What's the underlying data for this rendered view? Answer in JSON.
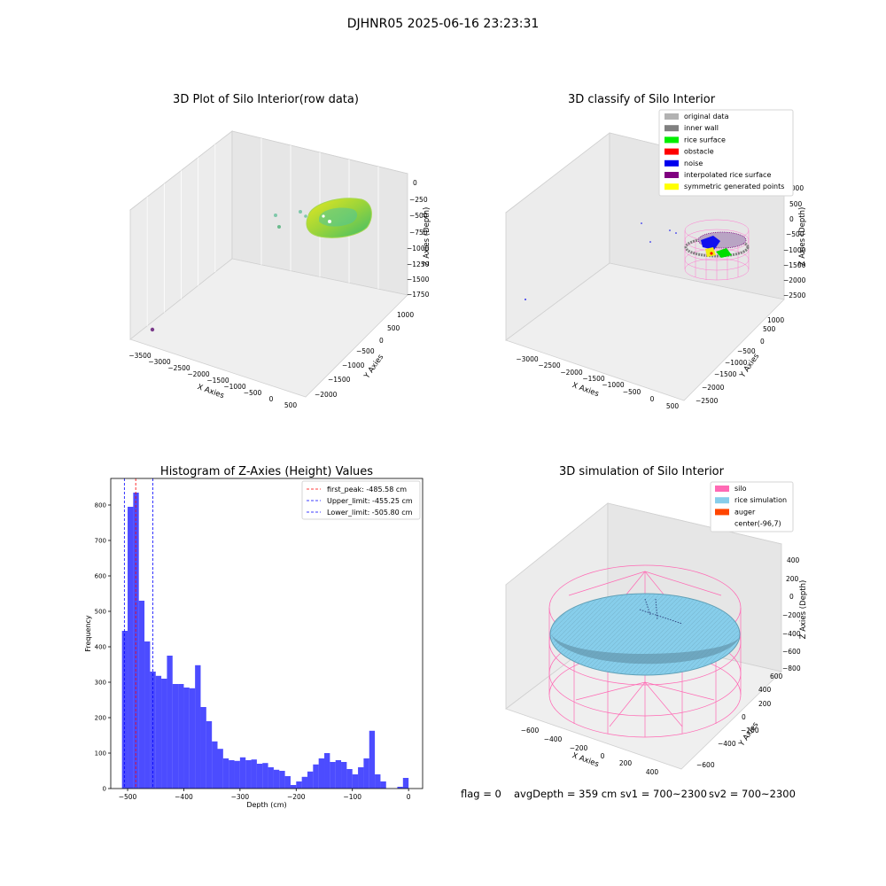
{
  "figure": {
    "suptitle": "DJHNR05 2025-06-16 23:23:31",
    "footer": {
      "flag": "flag = 0",
      "avg_depth": "avgDepth = 359 cm",
      "sv1": "sv1 = 700~2300",
      "sv2": "sv2 = 700~2300"
    }
  },
  "chart_data": [
    {
      "id": "raw",
      "type": "scatter",
      "title": "3D Plot of Silo Interior(row data)",
      "xlabel": "X Axies",
      "ylabel": "Y Axies",
      "zlabel": "Z Axies (Depth)",
      "x_ticks": [
        "−3500",
        "−3000",
        "−2500",
        "−2000",
        "−1500",
        "−1000",
        "−500",
        "0",
        "500"
      ],
      "y_ticks": [
        "−2000",
        "−1500",
        "−1000",
        "−500",
        "0",
        "500",
        "1000"
      ],
      "z_ticks": [
        "0",
        "−250",
        "−500",
        "−750",
        "−1000",
        "−1250",
        "−1500",
        "−1750"
      ],
      "grid": true
    },
    {
      "id": "classify",
      "type": "scatter",
      "title": "3D classify of Silo Interior",
      "xlabel": "X Axies",
      "ylabel": "Y Axies",
      "zlabel": "Z Axies (Depth)",
      "x_ticks": [
        "−3000",
        "−2500",
        "−2000",
        "−1500",
        "−1000",
        "−500",
        "0",
        "500"
      ],
      "y_ticks": [
        "−2500",
        "−2000",
        "−1500",
        "−1000",
        "−500",
        "0",
        "500",
        "1000"
      ],
      "z_ticks": [
        "1000",
        "500",
        "0",
        "−500",
        "−1000",
        "−1500",
        "−2000",
        "−2500"
      ],
      "legend": {
        "position": "top-right",
        "items": [
          {
            "label": "original data",
            "color": "#b2b2b2"
          },
          {
            "label": "inner wall",
            "color": "#808080"
          },
          {
            "label": "rice surface",
            "color": "#00ee00"
          },
          {
            "label": "obstacle",
            "color": "#ff0000"
          },
          {
            "label": "noise",
            "color": "#0000ee"
          },
          {
            "label": "interpolated rice surface",
            "color": "#800080"
          },
          {
            "label": "symmetric generated points",
            "color": "#ffff00"
          }
        ]
      },
      "grid": true
    },
    {
      "id": "histogram",
      "type": "bar",
      "title": "Histogram of Z-Axies (Height) Values",
      "xlabel": "Depth (cm)",
      "ylabel": "Frequency",
      "xlim": [
        -530,
        25
      ],
      "ylim": [
        0,
        875
      ],
      "x_ticks": [
        -500,
        -400,
        -300,
        -200,
        -100,
        0
      ],
      "x_tick_labels": [
        "−500",
        "−400",
        "−300",
        "−200",
        "−100",
        "0"
      ],
      "y_ticks": [
        0,
        100,
        200,
        300,
        400,
        500,
        600,
        700,
        800
      ],
      "bar_color": "#0000ff",
      "bin_width": 10,
      "bin_starts": [
        -510,
        -500,
        -490,
        -480,
        -470,
        -460,
        -450,
        -440,
        -430,
        -420,
        -410,
        -400,
        -390,
        -380,
        -370,
        -360,
        -350,
        -340,
        -330,
        -320,
        -310,
        -300,
        -290,
        -280,
        -270,
        -260,
        -250,
        -240,
        -230,
        -220,
        -210,
        -200,
        -190,
        -180,
        -170,
        -160,
        -150,
        -140,
        -130,
        -120,
        -110,
        -100,
        -90,
        -80,
        -70,
        -60,
        -50,
        -40,
        -30,
        -20,
        -10,
        0
      ],
      "values": [
        445,
        795,
        835,
        530,
        415,
        330,
        318,
        310,
        375,
        295,
        295,
        285,
        283,
        348,
        230,
        190,
        133,
        112,
        85,
        80,
        78,
        88,
        80,
        82,
        70,
        72,
        60,
        53,
        50,
        35,
        10,
        20,
        33,
        48,
        68,
        85,
        100,
        75,
        80,
        75,
        55,
        40,
        60,
        85,
        163,
        40,
        20,
        0,
        0,
        5,
        30,
        0
      ],
      "vlines": [
        {
          "label": "first_peak: -485.58 cm",
          "x": -485.58,
          "color": "#ff0000"
        },
        {
          "label": "Upper_limit: -455.25 cm",
          "x": -455.25,
          "color": "#0000ff"
        },
        {
          "label": "Lower_limit: -505.80 cm",
          "x": -505.8,
          "color": "#0000ff"
        }
      ],
      "legend_position": "top-right"
    },
    {
      "id": "simulation",
      "type": "scatter",
      "title": "3D simulation of Silo Interior",
      "xlabel": "X Axies",
      "ylabel": "Y Axies",
      "zlabel": "Z Axies (Depth)",
      "x_ticks": [
        "−600",
        "−400",
        "−200",
        "0",
        "200",
        "400"
      ],
      "y_ticks": [
        "−600",
        "−400",
        "−200",
        "0",
        "200",
        "400",
        "600"
      ],
      "z_ticks": [
        "400",
        "200",
        "0",
        "−200",
        "−400",
        "−600",
        "−800"
      ],
      "legend": {
        "position": "top-right",
        "items": [
          {
            "label": "silo",
            "color": "#ff69b4"
          },
          {
            "label": "rice simulation",
            "color": "#87ceeb"
          },
          {
            "label": "auger",
            "color": "#ff4500"
          },
          {
            "label": "center(-96,7)",
            "color": "#ffffff"
          }
        ]
      },
      "grid": true
    }
  ]
}
